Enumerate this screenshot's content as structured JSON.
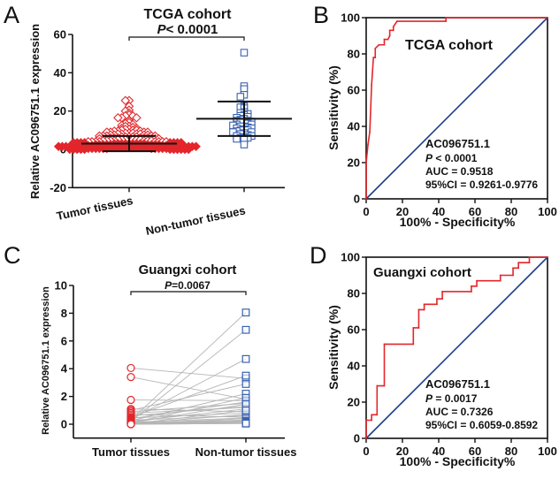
{
  "panel_labels": [
    "A",
    "B",
    "C",
    "D"
  ],
  "chart_data": [
    {
      "panel": "A",
      "type": "scatter",
      "title": "TCGA cohort",
      "p_prefix": "P",
      "p_value": "< 0.0001",
      "ylabel": "Relative AC096751.1 expression",
      "ylim": [
        -20,
        60
      ],
      "yticks": [
        "60",
        "40",
        "20",
        "0",
        "-20"
      ],
      "ytick_values": [
        60,
        40,
        20,
        0,
        -20
      ],
      "categories": [
        "Tumor tissues",
        "Non-tumor tissues"
      ],
      "series": [
        {
          "name": "Tumor tissues",
          "marker": "diamond",
          "color": "#e3262b",
          "mean": 3,
          "sd_low": -1,
          "sd_high": 7,
          "values": [
            25.5,
            25.5,
            22.5,
            20.5,
            20,
            19,
            18,
            17.5,
            17.5,
            16.5,
            16.5,
            16.5,
            15,
            14,
            13.5,
            13,
            12.5,
            12,
            12,
            11.5,
            11,
            11,
            10.5,
            10.5,
            10,
            10,
            10,
            9.5,
            9.5,
            9.5,
            9,
            9,
            9,
            9,
            8.5,
            8.5,
            8.5,
            8,
            8,
            8,
            8,
            7.5,
            7.5,
            7.5,
            7.5,
            7,
            7,
            7,
            7,
            7,
            6.5,
            6.5,
            6.5,
            6.5,
            6.5,
            6,
            6,
            6,
            6,
            6,
            6,
            5.5,
            5.5,
            5.5,
            5.5,
            5.5,
            5.5,
            5,
            5,
            5,
            5,
            5,
            5,
            5,
            4.5,
            4.5,
            4.5,
            4.5,
            4.5,
            4.5,
            4.5,
            4,
            4,
            4,
            4,
            4,
            4,
            4,
            4,
            3.5,
            3.5,
            3.5,
            3.5,
            3.5,
            3.5,
            3.5,
            3.5,
            3,
            3,
            3,
            3,
            3,
            3,
            3,
            3,
            3,
            2.5,
            2.5,
            2.5,
            2.5,
            2.5,
            2.5,
            2.5,
            2.5,
            2.5,
            2,
            2,
            2,
            2,
            2,
            2,
            2,
            2,
            2,
            2,
            1.5,
            1.5,
            1.5,
            1.5,
            1.5,
            1.5,
            1.5,
            1.5,
            1.5,
            1.5,
            1,
            1,
            1,
            1,
            1,
            1,
            1,
            1,
            1,
            1,
            1,
            0.5,
            0.5,
            0.5,
            0.5,
            0.5,
            0.5,
            0.5,
            0.5,
            0.5,
            0.5,
            0.5,
            0,
            0,
            0,
            0,
            0,
            0,
            0,
            0,
            0,
            0,
            0
          ]
        },
        {
          "name": "Non-tumor tissues",
          "marker": "square",
          "color": "#3a62b0",
          "mean": 16,
          "sd_low": 7,
          "sd_high": 25,
          "values": [
            50.5,
            33,
            31.5,
            28.5,
            27.5,
            22.5,
            22,
            21.5,
            19.5,
            19,
            18.5,
            18,
            17.5,
            17,
            16.5,
            16,
            15.5,
            15,
            15,
            14.5,
            14,
            14,
            13.5,
            13,
            13,
            12.5,
            12,
            12,
            11.5,
            11,
            11,
            10.5,
            10,
            10,
            9.5,
            9,
            9,
            8.5,
            8,
            7.5,
            7,
            7,
            6.5,
            6,
            6,
            5.5,
            5,
            2.5
          ]
        }
      ]
    },
    {
      "panel": "B",
      "type": "line",
      "title": "TCGA cohort",
      "xlabel": "100% - Specificity%",
      "ylabel": "Sensitivity (%)",
      "xlim": [
        0,
        100
      ],
      "ylim": [
        0,
        100
      ],
      "ticks": [
        "0",
        "20",
        "40",
        "60",
        "80",
        "100"
      ],
      "tick_values": [
        0,
        20,
        40,
        60,
        80,
        100
      ],
      "roc_color": "#e3262b",
      "reference_color": "#1f3f8a",
      "annotation": {
        "marker": "AC096751.1",
        "p_prefix": "P",
        "p_value": " < 0.0001",
        "auc": "AUC = 0.9518",
        "ci": "95%CI = 0.9261-0.9776"
      },
      "roc": {
        "x": [
          0,
          0,
          1,
          2,
          3,
          4,
          5,
          5,
          7,
          10,
          10,
          12,
          13,
          13,
          15,
          15,
          17,
          44,
          44,
          100
        ],
        "y": [
          0,
          20,
          30,
          37,
          63,
          78,
          78,
          83,
          85,
          85,
          88,
          88,
          90,
          93,
          93,
          95,
          98,
          98,
          100,
          100
        ]
      },
      "reference": {
        "x": [
          0,
          100
        ],
        "y": [
          0,
          100
        ]
      }
    },
    {
      "panel": "C",
      "type": "line",
      "title": "Guangxi cohort",
      "p_prefix": "P",
      "p_value": "=0.0067",
      "ylabel": "Relative AC096751.1 expression",
      "ylim": [
        -1,
        10
      ],
      "yticks": [
        "10",
        "8",
        "6",
        "4",
        "2",
        "0"
      ],
      "ytick_values": [
        10,
        8,
        6,
        4,
        2,
        0
      ],
      "categories": [
        "Tumor tissues",
        "Non-tumor tissues"
      ],
      "tumor_color": "#e3262b",
      "nontumor_color": "#3a62b0",
      "line_color": "#b5b5b5",
      "pairs": {
        "tumor": [
          4.05,
          3.4,
          1.75,
          1.1,
          1.0,
          0.9,
          0.8,
          0.7,
          0.6,
          0.5,
          0.45,
          0.4,
          0.35,
          0.3,
          0.3,
          0.25,
          0.2,
          0.2,
          0.15,
          0.1,
          0.1,
          0.1,
          0.05,
          0.05,
          0.05,
          0.02,
          0.02,
          0.01,
          0.01,
          0.0,
          0.0
        ],
        "nontumor": [
          3.3,
          1.8,
          1.7,
          0.9,
          2.9,
          1.5,
          1.2,
          0.5,
          1.3,
          3.5,
          0.8,
          1.6,
          4.7,
          8.05,
          0.6,
          2.2,
          6.8,
          1.1,
          0.45,
          1.9,
          0.3,
          1.45,
          0.7,
          0.4,
          0.25,
          1.0,
          0.2,
          0.15,
          0.1,
          0.05,
          0.05
        ]
      }
    },
    {
      "panel": "D",
      "type": "line",
      "title": "Guangxi cohort",
      "xlabel": "100% - Specificity%",
      "ylabel": "Sensitivity (%)",
      "xlim": [
        0,
        100
      ],
      "ylim": [
        0,
        100
      ],
      "ticks": [
        "0",
        "20",
        "40",
        "60",
        "80",
        "100"
      ],
      "tick_values": [
        0,
        20,
        40,
        60,
        80,
        100
      ],
      "roc_color": "#e3262b",
      "reference_color": "#1f3f8a",
      "annotation": {
        "marker": "AC096751.1",
        "p_prefix": "P",
        "p_value": " = 0.0017",
        "auc": "AUC = 0.7326",
        "ci": "95%CI = 0.6059-0.8592"
      },
      "roc": {
        "x": [
          0,
          0,
          3,
          3,
          6,
          6,
          10,
          10,
          26,
          26,
          29,
          29,
          32,
          32,
          39,
          39,
          42,
          42,
          58,
          58,
          61,
          61,
          74,
          74,
          81,
          81,
          84,
          84,
          90,
          90,
          100
        ],
        "y": [
          0,
          10,
          10,
          13,
          13,
          29,
          29,
          52,
          52,
          61,
          61,
          71,
          71,
          74,
          74,
          77,
          77,
          81,
          81,
          84,
          84,
          87,
          87,
          90,
          90,
          94,
          94,
          97,
          97,
          100,
          100
        ]
      },
      "reference": {
        "x": [
          0,
          100
        ],
        "y": [
          0,
          100
        ]
      }
    }
  ]
}
